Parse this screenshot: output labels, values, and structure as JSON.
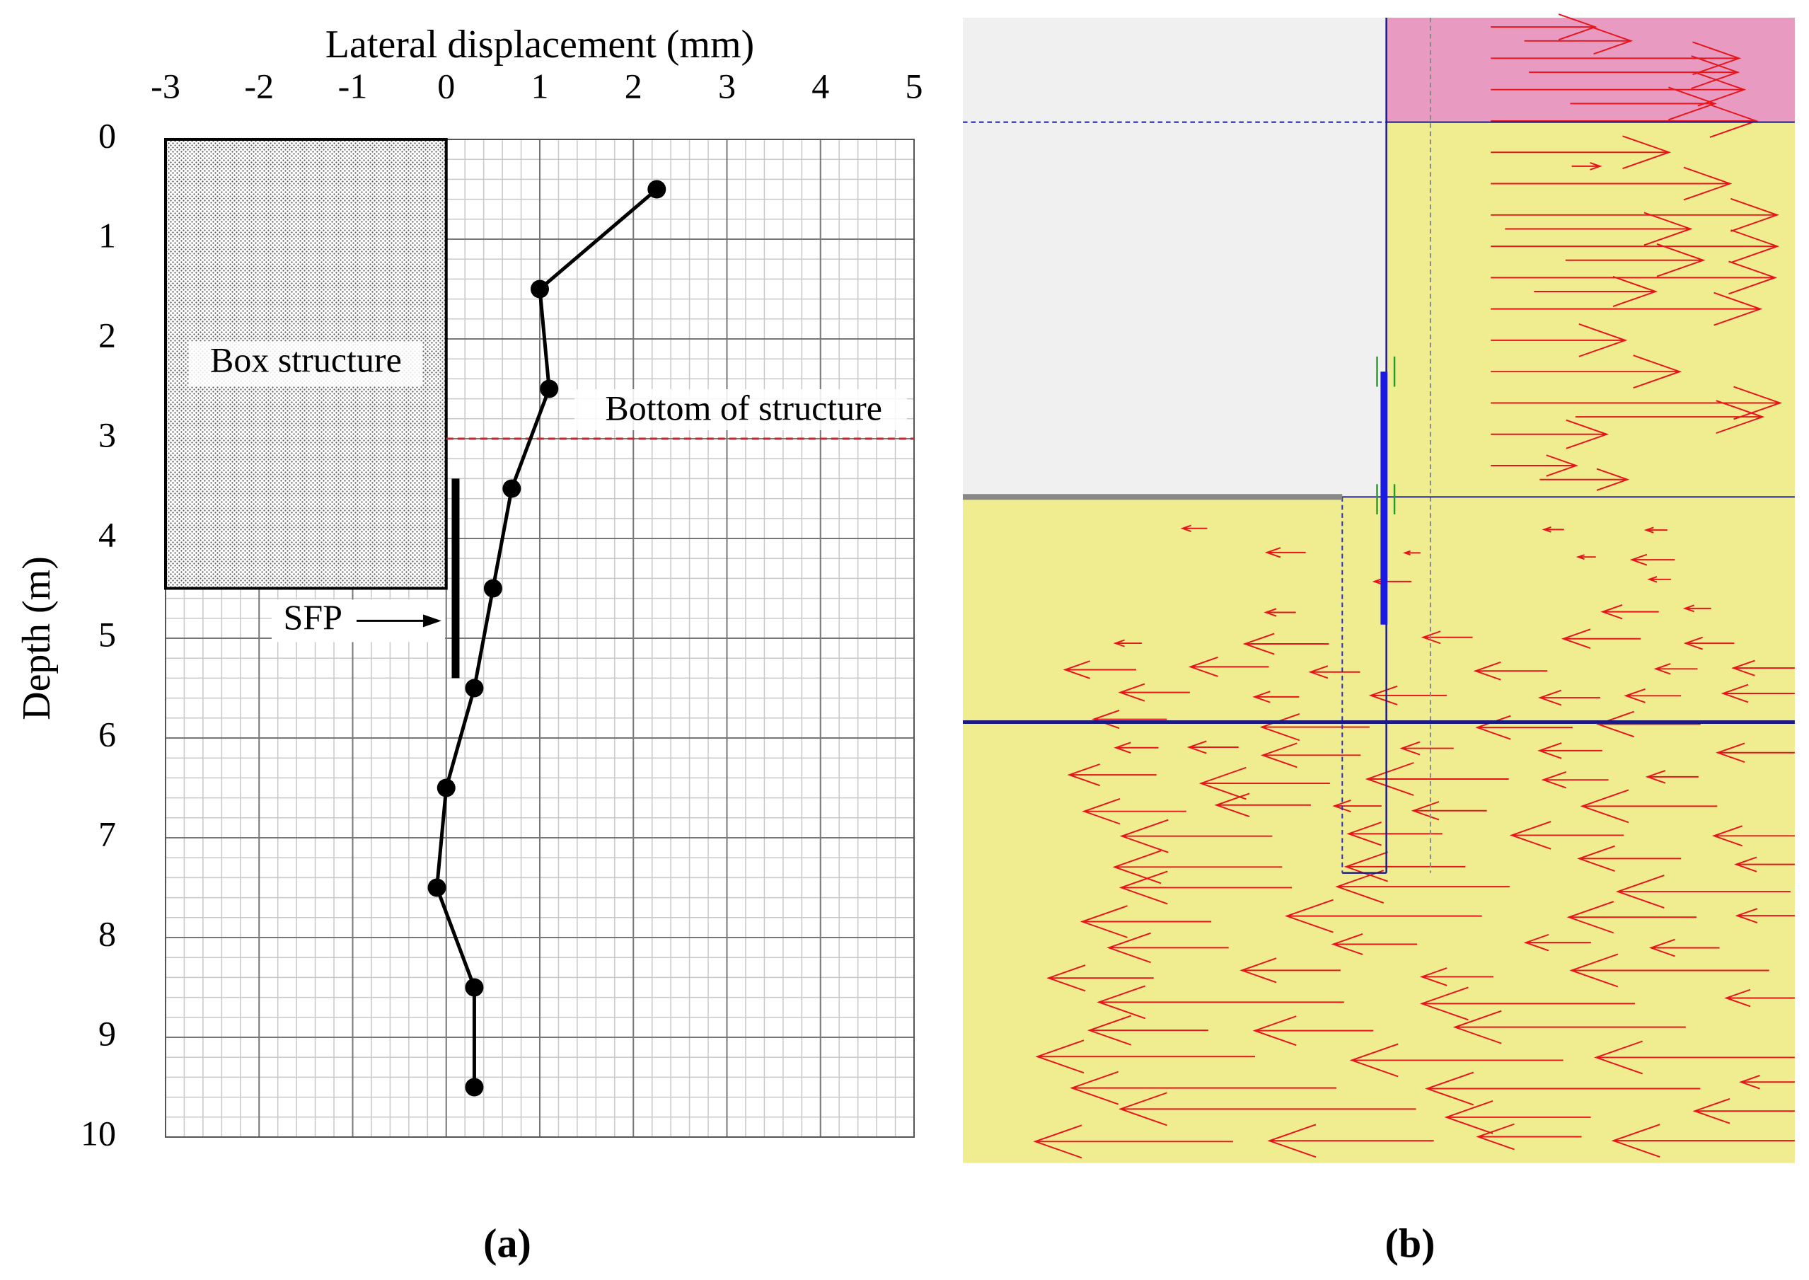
{
  "chart_data": {
    "type": "line",
    "xlabel": "Lateral displacement (mm)",
    "ylabel": "Depth (m)",
    "x": [
      2.25,
      1.0,
      1.1,
      0.7,
      0.5,
      0.3,
      0.0,
      -0.1,
      0.3,
      0.3
    ],
    "y": [
      0.5,
      1.5,
      2.5,
      3.5,
      4.5,
      5.5,
      6.5,
      7.5,
      8.5,
      9.5
    ],
    "color": "#000000",
    "xlim": [
      -3,
      5
    ],
    "xticks": [
      -3,
      -2,
      -1,
      0,
      1,
      2,
      3,
      4,
      5
    ],
    "ylim": [
      0,
      10
    ],
    "yticks": [
      0,
      1,
      2,
      3,
      4,
      5,
      6,
      7,
      8,
      9,
      10
    ],
    "y_reversed": true,
    "x_axis_position": "top",
    "grid": true,
    "box_structure": {
      "label": "Box structure",
      "xlim": [
        -3,
        0
      ],
      "ylim": [
        0,
        4.5
      ]
    },
    "bottom_of_structure": {
      "label": "Bottom of structure",
      "y": 3,
      "color": "#c0282d"
    },
    "sfp": {
      "label": "SFP",
      "x": 0.1,
      "ylim": [
        3.4,
        5.4
      ]
    },
    "panel_label": "(a)"
  },
  "panel_b": {
    "panel_label": "(b)"
  }
}
